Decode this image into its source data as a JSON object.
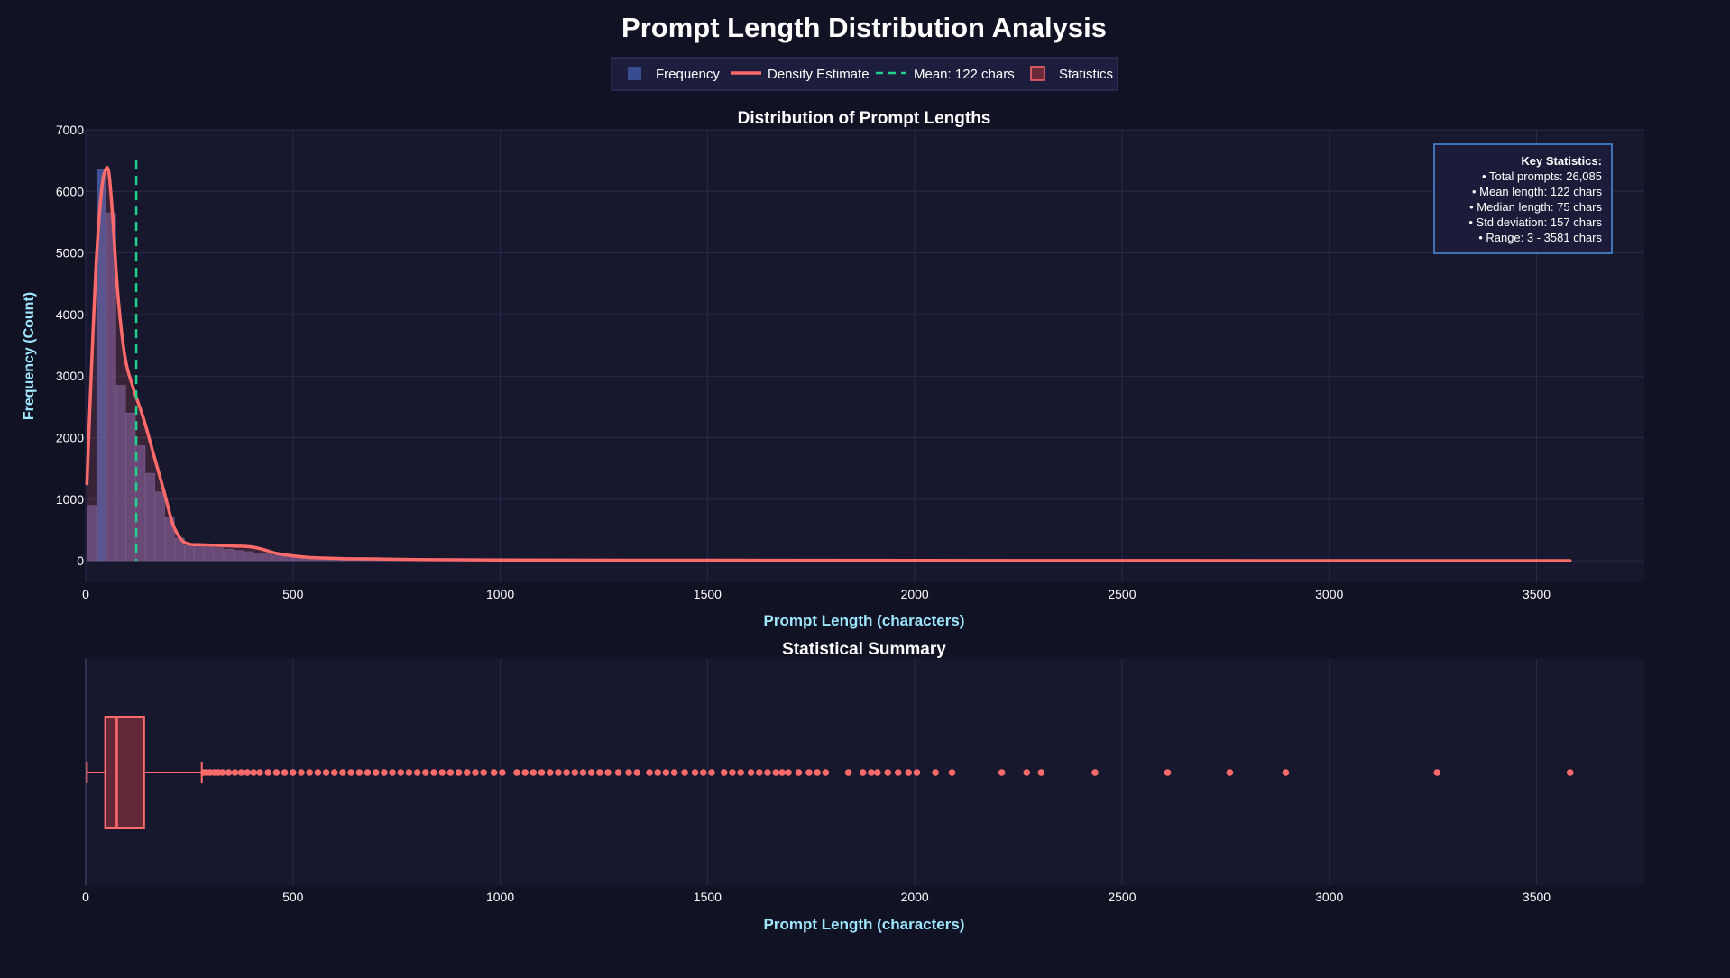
{
  "title": "Prompt Length Distribution Analysis",
  "colors": {
    "page_bg": "#121225",
    "plot_bg": "#17172d",
    "grid": "#2a2a4a",
    "hist_fill": "#5e4f8a",
    "hist_highlight": "#4a62b0",
    "density": "#ff6b6b",
    "mean_line": "#1fd38a",
    "box_fill": "#6b2a3a",
    "axis_title": "#9fe8ff",
    "stats_border": "#4a90e2",
    "stats_bg": "#1c1c3a"
  },
  "legend": [
    {
      "label": "Frequency",
      "symbol": "square"
    },
    {
      "label": "Density Estimate",
      "symbol": "line"
    },
    {
      "label": "Mean: 122 chars",
      "symbol": "dash"
    },
    {
      "label": "Statistics",
      "symbol": "box"
    }
  ],
  "stats_box": {
    "heading": "Key Statistics:",
    "lines": [
      "• Total prompts: 26,085",
      "• Mean length: 122 chars",
      "• Median length: 75 chars",
      "• Std deviation: 157 chars",
      "• Range: 3 - 3581 chars"
    ]
  },
  "chart_data": [
    {
      "type": "bar",
      "title": "Distribution of Prompt Lengths",
      "xlabel": "Prompt Length (characters)",
      "ylabel": "Frequency (Count)",
      "xlim": [
        0,
        3760
      ],
      "ylim": [
        -350,
        7000
      ],
      "x_ticks": [
        0,
        500,
        1000,
        1500,
        2000,
        2500,
        3000,
        3500
      ],
      "y_ticks": [
        0,
        1000,
        2000,
        3000,
        4000,
        5000,
        6000,
        7000
      ],
      "grid": true,
      "bin_width": 23.6,
      "hist_bins": [
        {
          "x0": 3,
          "count": 900
        },
        {
          "x0": 26.6,
          "count": 6350
        },
        {
          "x0": 50.2,
          "count": 5650
        },
        {
          "x0": 73.8,
          "count": 2850
        },
        {
          "x0": 97.4,
          "count": 2400
        },
        {
          "x0": 121,
          "count": 1870
        },
        {
          "x0": 144.6,
          "count": 1420
        },
        {
          "x0": 168.2,
          "count": 1120
        },
        {
          "x0": 191.8,
          "count": 700
        },
        {
          "x0": 215.4,
          "count": 370
        },
        {
          "x0": 239,
          "count": 250
        },
        {
          "x0": 262.6,
          "count": 230
        },
        {
          "x0": 286.2,
          "count": 220
        },
        {
          "x0": 309.8,
          "count": 210
        },
        {
          "x0": 333.4,
          "count": 190
        },
        {
          "x0": 357,
          "count": 170
        },
        {
          "x0": 380.6,
          "count": 150
        },
        {
          "x0": 404.2,
          "count": 130
        },
        {
          "x0": 427.8,
          "count": 110
        },
        {
          "x0": 451.4,
          "count": 90
        },
        {
          "x0": 475,
          "count": 70
        },
        {
          "x0": 498.6,
          "count": 55
        },
        {
          "x0": 522.2,
          "count": 45
        },
        {
          "x0": 545.8,
          "count": 35
        },
        {
          "x0": 569.4,
          "count": 28
        },
        {
          "x0": 593,
          "count": 22
        },
        {
          "x0": 616.6,
          "count": 18
        },
        {
          "x0": 640.2,
          "count": 15
        },
        {
          "x0": 663.8,
          "count": 12
        },
        {
          "x0": 687.4,
          "count": 10
        },
        {
          "x0": 711,
          "count": 8
        },
        {
          "x0": 734.6,
          "count": 6
        },
        {
          "x0": 758.2,
          "count": 5
        }
      ],
      "density_curve": [
        [
          3,
          1250
        ],
        [
          12,
          2800
        ],
        [
          25,
          4800
        ],
        [
          38,
          6000
        ],
        [
          48,
          6350
        ],
        [
          56,
          6300
        ],
        [
          65,
          5600
        ],
        [
          78,
          4300
        ],
        [
          95,
          3300
        ],
        [
          115,
          2800
        ],
        [
          140,
          2300
        ],
        [
          165,
          1700
        ],
        [
          190,
          1100
        ],
        [
          210,
          600
        ],
        [
          230,
          350
        ],
        [
          250,
          270
        ],
        [
          280,
          260
        ],
        [
          320,
          250
        ],
        [
          360,
          240
        ],
        [
          400,
          225
        ],
        [
          430,
          180
        ],
        [
          460,
          120
        ],
        [
          500,
          80
        ],
        [
          550,
          50
        ],
        [
          620,
          35
        ],
        [
          700,
          30
        ],
        [
          800,
          20
        ],
        [
          1000,
          12
        ],
        [
          1500,
          8
        ],
        [
          2000,
          5
        ],
        [
          2500,
          3
        ],
        [
          3000,
          2
        ],
        [
          3581,
          1
        ]
      ],
      "mean_line": {
        "x": 122,
        "y_top": 6500,
        "label": "Mean: 122 chars"
      }
    },
    {
      "type": "box",
      "title": "Statistical Summary",
      "xlabel": "Prompt Length (characters)",
      "xlim": [
        0,
        3760
      ],
      "x_ticks": [
        0,
        500,
        1000,
        1500,
        2000,
        2500,
        3000,
        3500
      ],
      "min": 3,
      "q1": 47,
      "median": 75,
      "q3": 141,
      "whisker_high": 280,
      "outliers": [
        285,
        292,
        300,
        310,
        320,
        330,
        345,
        360,
        375,
        390,
        405,
        420,
        440,
        460,
        480,
        500,
        520,
        540,
        560,
        580,
        600,
        620,
        640,
        660,
        680,
        700,
        720,
        740,
        760,
        780,
        800,
        820,
        840,
        860,
        880,
        900,
        920,
        940,
        960,
        985,
        1005,
        1040,
        1060,
        1080,
        1100,
        1120,
        1140,
        1160,
        1180,
        1200,
        1220,
        1240,
        1260,
        1285,
        1310,
        1330,
        1360,
        1380,
        1400,
        1420,
        1445,
        1470,
        1490,
        1510,
        1540,
        1560,
        1580,
        1605,
        1625,
        1645,
        1665,
        1680,
        1695,
        1720,
        1745,
        1765,
        1785,
        1840,
        1875,
        1895,
        1910,
        1935,
        1960,
        1985,
        2005,
        2050,
        2090,
        2210,
        2270,
        2305,
        2435,
        2610,
        2760,
        2895,
        3260,
        3581
      ]
    }
  ]
}
